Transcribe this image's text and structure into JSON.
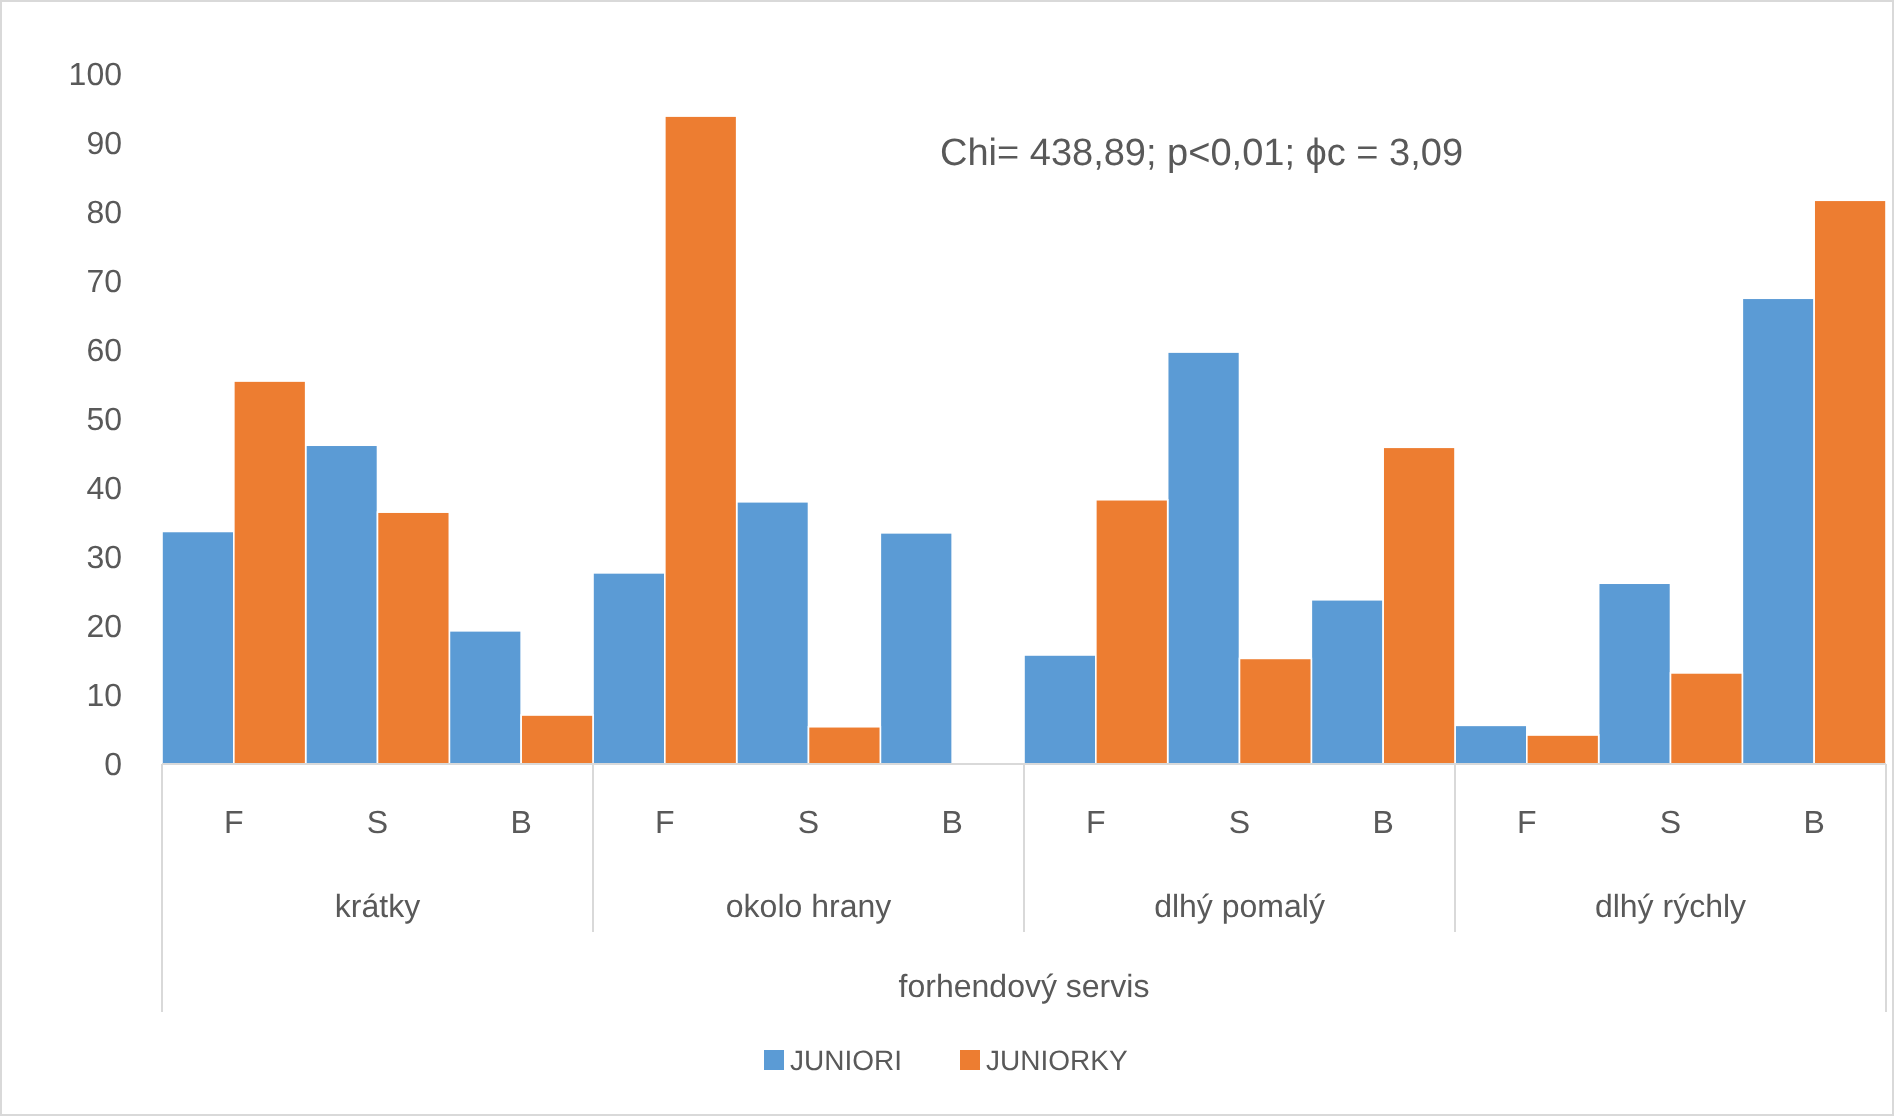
{
  "chart_data": {
    "type": "bar",
    "categories": [
      "F",
      "S",
      "B",
      "F",
      "S",
      "B",
      "F",
      "S",
      "B",
      "F",
      "S",
      "B"
    ],
    "series": [
      {
        "name": "JUNIORI",
        "color": "#5b9bd5",
        "values": [
          33.7,
          46.2,
          19.3,
          27.7,
          38.0,
          33.5,
          15.8,
          59.7,
          23.8,
          5.6,
          26.2,
          67.5
        ]
      },
      {
        "name": "JUNIORKY",
        "color": "#ed7d31",
        "values": [
          55.5,
          36.5,
          7.1,
          93.9,
          5.4,
          0,
          38.3,
          15.3,
          45.9,
          4.2,
          13.2,
          81.7
        ]
      }
    ],
    "xlabel": "forhendový servis",
    "annotations": [
      "Chi= 438,89; p<0,01; ϕc = 3,09",
      "krátky",
      "okolo hrany",
      "dlhý pomalý",
      "dlhý rýchly"
    ],
    "ylim": [
      0,
      100
    ],
    "yticks": [
      0,
      10,
      20,
      30,
      40,
      50,
      60,
      70,
      80,
      90,
      100
    ],
    "grid": false,
    "legend": "bottom"
  }
}
